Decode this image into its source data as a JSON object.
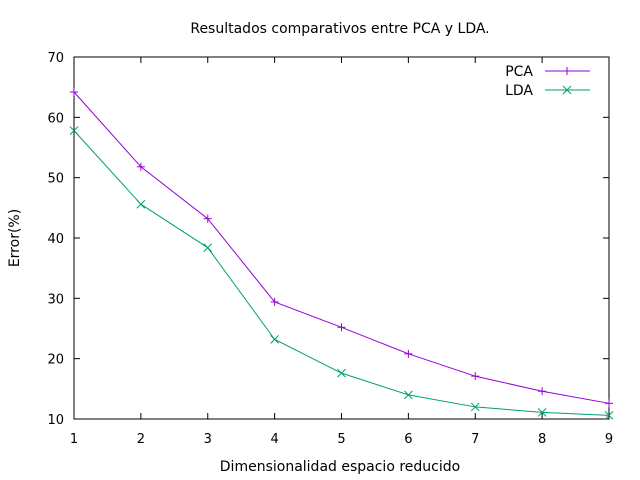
{
  "chart_data": {
    "type": "line",
    "title": "Resultados comparativos entre PCA y LDA.",
    "xlabel": "Dimensionalidad espacio reducido",
    "ylabel": "Error(%)",
    "xlim": [
      1,
      9
    ],
    "ylim": [
      10,
      70
    ],
    "x": [
      1,
      2,
      3,
      4,
      5,
      6,
      7,
      8,
      9
    ],
    "xticks": [
      "1",
      "2",
      "3",
      "4",
      "5",
      "6",
      "7",
      "8",
      "9"
    ],
    "yticks": [
      "10",
      "20",
      "30",
      "40",
      "50",
      "60",
      "70"
    ],
    "grid": false,
    "legend_position": "top-right",
    "series": [
      {
        "name": "PCA",
        "color": "#9400d3",
        "marker": "plus",
        "values": [
          64.2,
          51.8,
          43.2,
          29.4,
          25.2,
          20.8,
          17.1,
          14.6,
          12.6
        ]
      },
      {
        "name": "LDA",
        "color": "#009e73",
        "marker": "cross",
        "values": [
          57.8,
          45.6,
          38.4,
          23.2,
          17.6,
          14.0,
          12.0,
          11.1,
          10.6
        ]
      }
    ]
  }
}
